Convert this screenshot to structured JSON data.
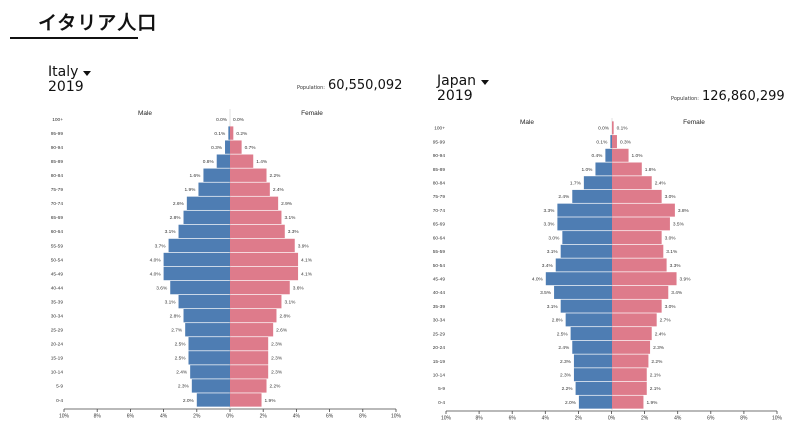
{
  "header": {
    "title": "イタリア人口"
  },
  "charts": [
    {
      "country": "Italy",
      "year": "2019",
      "population_label": "Population:",
      "population": "60,550,092",
      "male_label": "Male",
      "female_label": "Female",
      "colors": {
        "male": "#4e7db3",
        "female": "#de7b8b"
      }
    },
    {
      "country": "Japan",
      "year": "2019",
      "population_label": "Population:",
      "population": "126,860,299",
      "male_label": "Male",
      "female_label": "Female",
      "colors": {
        "male": "#4e7db3",
        "female": "#de7b8b"
      }
    }
  ],
  "chart_data": [
    {
      "type": "bar",
      "categories": [
        "0-4",
        "5-9",
        "10-14",
        "15-19",
        "20-24",
        "25-29",
        "30-34",
        "35-39",
        "40-44",
        "45-49",
        "50-54",
        "55-59",
        "60-64",
        "65-69",
        "70-74",
        "75-79",
        "80-84",
        "85-89",
        "90-94",
        "95-99",
        "100+"
      ],
      "series": [
        {
          "name": "Male",
          "values": [
            2.0,
            2.3,
            2.4,
            2.5,
            2.5,
            2.7,
            2.8,
            3.1,
            3.6,
            4.0,
            4.0,
            3.7,
            3.1,
            2.8,
            2.6,
            1.9,
            1.6,
            0.8,
            0.3,
            0.1,
            0.0
          ]
        },
        {
          "name": "Female",
          "values": [
            1.9,
            2.2,
            2.3,
            2.3,
            2.3,
            2.6,
            2.8,
            3.1,
            3.6,
            4.1,
            4.1,
            3.9,
            3.3,
            3.1,
            2.9,
            2.4,
            2.2,
            1.4,
            0.7,
            0.2,
            0.0
          ]
        }
      ],
      "value_labels": {
        "male": [
          "2.0%",
          "2.3%",
          "2.4%",
          "2.5%",
          "2.5%",
          "2.7%",
          "2.8%",
          "3.1%",
          "3.6%",
          "4.0%",
          "4.0%",
          "3.7%",
          "3.1%",
          "2.8%",
          "2.6%",
          "1.9%",
          "1.6%",
          "0.8%",
          "0.3%",
          "0.1%",
          "0.0%"
        ],
        "female": [
          "1.9%",
          "2.2%",
          "2.3%",
          "2.3%",
          "2.3%",
          "2.6%",
          "2.8%",
          "3.1%",
          "3.6%",
          "4.1%",
          "4.1%",
          "3.9%",
          "3.3%",
          "3.1%",
          "2.9%",
          "2.4%",
          "2.2%",
          "1.4%",
          "0.7%",
          "0.2%",
          "0.0%"
        ]
      },
      "x_ticks": [
        "10%",
        "8%",
        "6%",
        "4%",
        "2%",
        "0%",
        "2%",
        "4%",
        "6%",
        "8%",
        "10%"
      ],
      "xlim": [
        -10,
        10
      ]
    },
    {
      "type": "bar",
      "categories": [
        "0-4",
        "5-9",
        "10-14",
        "15-19",
        "20-24",
        "25-29",
        "30-34",
        "35-39",
        "40-44",
        "45-49",
        "50-54",
        "55-59",
        "60-64",
        "65-69",
        "70-74",
        "75-79",
        "80-84",
        "85-89",
        "90-94",
        "95-99",
        "100+"
      ],
      "series": [
        {
          "name": "Male",
          "values": [
            2.0,
            2.2,
            2.3,
            2.3,
            2.4,
            2.5,
            2.8,
            3.1,
            3.5,
            4.0,
            3.4,
            3.1,
            3.0,
            3.3,
            3.3,
            2.4,
            1.7,
            1.0,
            0.4,
            0.1,
            0.0
          ]
        },
        {
          "name": "Female",
          "values": [
            1.9,
            2.1,
            2.1,
            2.2,
            2.3,
            2.4,
            2.7,
            3.0,
            3.4,
            3.9,
            3.3,
            3.1,
            3.0,
            3.5,
            3.8,
            3.0,
            2.4,
            1.8,
            1.0,
            0.3,
            0.1
          ]
        }
      ],
      "value_labels": {
        "male": [
          "2.0%",
          "2.2%",
          "2.3%",
          "2.3%",
          "2.4%",
          "2.5%",
          "2.8%",
          "3.1%",
          "3.5%",
          "4.0%",
          "3.4%",
          "3.1%",
          "3.0%",
          "3.3%",
          "3.3%",
          "2.4%",
          "1.7%",
          "1.0%",
          "0.4%",
          "0.1%",
          "0.0%"
        ],
        "female": [
          "1.9%",
          "2.1%",
          "2.1%",
          "2.2%",
          "2.3%",
          "2.4%",
          "2.7%",
          "3.0%",
          "3.4%",
          "3.9%",
          "3.3%",
          "3.1%",
          "3.0%",
          "3.5%",
          "3.8%",
          "3.0%",
          "2.4%",
          "1.8%",
          "1.0%",
          "0.3%",
          "0.1%"
        ]
      },
      "x_ticks": [
        "10%",
        "8%",
        "6%",
        "4%",
        "2%",
        "0%",
        "2%",
        "4%",
        "6%",
        "8%",
        "10%"
      ],
      "xlim": [
        -10,
        10
      ]
    }
  ]
}
